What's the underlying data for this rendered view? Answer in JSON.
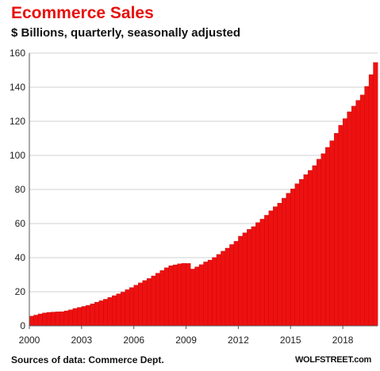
{
  "header": {
    "title": "Ecommerce Sales",
    "subtitle": "$ Billions, quarterly, seasonally adjusted"
  },
  "footer": {
    "source": "Sources of data: Commerce Dept.",
    "brand": "WOLFSTREET.com"
  },
  "colors": {
    "bar": "#ee1111",
    "bar_edge": "#b80000",
    "title": "#e8100c",
    "grid": "#d0d0d0"
  },
  "chart_data": {
    "type": "bar",
    "title": "Ecommerce Sales",
    "subtitle": "$ Billions, quarterly, seasonally adjusted",
    "xlabel": "",
    "ylabel": "",
    "ylim": [
      0,
      160
    ],
    "yticks": [
      0,
      20,
      40,
      60,
      80,
      100,
      120,
      140,
      160
    ],
    "xtick_labels": [
      "2000",
      "2003",
      "2006",
      "2009",
      "2012",
      "2015",
      "2018"
    ],
    "grid": true,
    "legend": "none",
    "categories": [
      "2000Q1",
      "2000Q2",
      "2000Q3",
      "2000Q4",
      "2001Q1",
      "2001Q2",
      "2001Q3",
      "2001Q4",
      "2002Q1",
      "2002Q2",
      "2002Q3",
      "2002Q4",
      "2003Q1",
      "2003Q2",
      "2003Q3",
      "2003Q4",
      "2004Q1",
      "2004Q2",
      "2004Q3",
      "2004Q4",
      "2005Q1",
      "2005Q2",
      "2005Q3",
      "2005Q4",
      "2006Q1",
      "2006Q2",
      "2006Q3",
      "2006Q4",
      "2007Q1",
      "2007Q2",
      "2007Q3",
      "2007Q4",
      "2008Q1",
      "2008Q2",
      "2008Q3",
      "2008Q4",
      "2009Q1",
      "2009Q2",
      "2009Q3",
      "2009Q4",
      "2010Q1",
      "2010Q2",
      "2010Q3",
      "2010Q4",
      "2011Q1",
      "2011Q2",
      "2011Q3",
      "2011Q4",
      "2012Q1",
      "2012Q2",
      "2012Q3",
      "2012Q4",
      "2013Q1",
      "2013Q2",
      "2013Q3",
      "2013Q4",
      "2014Q1",
      "2014Q2",
      "2014Q3",
      "2014Q4",
      "2015Q1",
      "2015Q2",
      "2015Q3",
      "2015Q4",
      "2016Q1",
      "2016Q2",
      "2016Q3",
      "2016Q4",
      "2017Q1",
      "2017Q2",
      "2017Q3",
      "2017Q4",
      "2018Q1",
      "2018Q2",
      "2018Q3",
      "2018Q4",
      "2019Q1",
      "2019Q2",
      "2019Q3",
      "2019Q4"
    ],
    "values": [
      5.7,
      6.3,
      7.0,
      7.6,
      7.9,
      8.1,
      8.2,
      8.3,
      8.8,
      9.4,
      10.2,
      10.8,
      11.4,
      12.0,
      12.9,
      13.9,
      14.7,
      15.6,
      16.7,
      17.7,
      18.8,
      19.8,
      21.2,
      22.5,
      23.9,
      25.2,
      26.6,
      27.8,
      29.3,
      30.9,
      32.5,
      34.1,
      35.3,
      35.8,
      36.4,
      36.7,
      36.6,
      33.3,
      34.6,
      35.9,
      37.5,
      38.6,
      40.1,
      41.9,
      43.8,
      45.6,
      47.7,
      49.6,
      52.6,
      54.6,
      56.6,
      58.2,
      60.6,
      62.6,
      64.9,
      67.5,
      69.9,
      72.0,
      74.9,
      77.8,
      80.4,
      83.4,
      85.9,
      88.7,
      91.2,
      94.0,
      97.8,
      101.0,
      104.7,
      108.6,
      113.0,
      117.7,
      121.6,
      125.6,
      128.9,
      132.3,
      135.5,
      140.5,
      147.4,
      154.5
    ]
  }
}
